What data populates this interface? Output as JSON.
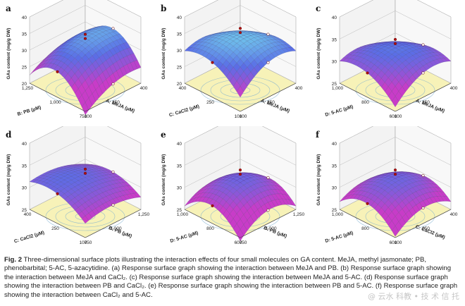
{
  "figure": {
    "panels": [
      {
        "letter": "a",
        "zlabel": "GAs content (mg/g DW)",
        "zticks": [
          "20",
          "25",
          "30",
          "35",
          "40"
        ],
        "left_axis": {
          "label": "B: PB (μM)",
          "ticks": [
            "1,250",
            "1,000",
            "750"
          ]
        },
        "right_axis": {
          "label": "A: MeJA (μM)",
          "ticks": [
            "400",
            "250",
            "100"
          ]
        },
        "surface": {
          "base": 32.8,
          "k1": 2.2,
          "k2": 7.0,
          "k3": 1.2,
          "t1": 0.85,
          "t2": 0.1,
          "t3": 0.0
        }
      },
      {
        "letter": "b",
        "zlabel": "GAs content (mg/g DW)",
        "zticks": [
          "20",
          "25",
          "30",
          "35",
          "40"
        ],
        "left_axis": {
          "label": "C: CaCl2 (μM)",
          "ticks": [
            "400",
            "250",
            "100"
          ]
        },
        "right_axis": {
          "label": "A: MeJA (μM)",
          "ticks": [
            "400",
            "250",
            "100"
          ]
        },
        "surface": {
          "base": 34.0,
          "k1": 3.5,
          "k2": 3.5,
          "k3": 5.5,
          "t1": 0.0,
          "t2": 0.0,
          "t3": 0.0
        }
      },
      {
        "letter": "c",
        "zlabel": "GAs content (mg/g DW)",
        "zticks": [
          "25",
          "30",
          "35",
          "40"
        ],
        "left_axis": {
          "label": "D: 5-AC (μM)",
          "ticks": [
            "1,000",
            "800",
            "600"
          ]
        },
        "right_axis": {
          "label": "A: MeJA (μM)",
          "ticks": [
            "400",
            "250",
            "100"
          ]
        },
        "surface": {
          "base": 33.0,
          "k1": 2.5,
          "k2": 2.5,
          "k3": 4.0,
          "t1": 0.0,
          "t2": 0.0,
          "t3": 0.0
        }
      },
      {
        "letter": "d",
        "zlabel": "GAs content (mg/g DW)",
        "zticks": [
          "25",
          "30",
          "35",
          "40"
        ],
        "left_axis": {
          "label": "C: CaCl2 (μM)",
          "ticks": [
            "400",
            "250",
            "100"
          ]
        },
        "right_axis": {
          "label": "B: PB (μM)",
          "ticks": [
            "1,250",
            "1,000",
            "750"
          ]
        },
        "surface": {
          "base": 32.5,
          "k1": 1.2,
          "k2": 2.0,
          "k3": 1.0,
          "t1": -0.6,
          "t2": 0.5,
          "t3": 0.0
        }
      },
      {
        "letter": "e",
        "zlabel": "GAs content (mg/g DW)",
        "zticks": [
          "25",
          "30",
          "35",
          "40"
        ],
        "left_axis": {
          "label": "D: 5-AC (μM)",
          "ticks": [
            "1,000",
            "800",
            "600"
          ]
        },
        "right_axis": {
          "label": "B: PB (μM)",
          "ticks": [
            "1,250",
            "1,000",
            "750"
          ]
        },
        "surface": {
          "base": 32.0,
          "k1": 3.0,
          "k2": 4.0,
          "k3": 1.5,
          "t1": 0.0,
          "t2": 0.0,
          "t3": 0.0
        }
      },
      {
        "letter": "f",
        "zlabel": "GAs content (mg/g DW)",
        "zticks": [
          "25",
          "30",
          "35",
          "40"
        ],
        "left_axis": {
          "label": "D: 5-AC (μM)",
          "ticks": [
            "1,000",
            "800",
            "600"
          ]
        },
        "right_axis": {
          "label": "C: CaCl2 (μM)",
          "ticks": [
            "400",
            "250",
            "100"
          ]
        },
        "surface": {
          "base": 32.0,
          "k1": 2.5,
          "k2": 3.5,
          "k3": 1.5,
          "t1": 0.0,
          "t2": 0.0,
          "t3": 0.0
        }
      }
    ]
  },
  "caption": {
    "label": "Fig. 2",
    "text": "Three-dimensional surface plots illustrating the interaction effects of four small molecules on GA content. MeJA, methyl jasmonate; PB, phenobarbital; 5-AC, 5-azacytidine. (a) Response surface graph showing the interaction between MeJA and PB. (b) Response surface graph showing the interaction between MeJA and CaCl₂. (c) Response surface graph showing the interaction between MeJA and 5-AC. (d) Response surface graph showing the interaction between PB and CaCl₂. (e) Response surface graph showing the interaction between PB and 5-AC. (f) Response surface graph showing the interaction between CaCl₂ and 5-AC."
  },
  "watermark": "@ 云水 科教 • 技 术 信 托"
}
